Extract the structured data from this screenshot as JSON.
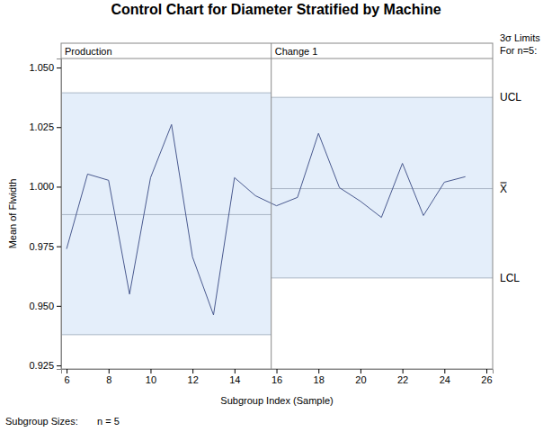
{
  "chart_data": {
    "type": "line",
    "title": "Control Chart for Diameter Stratified by Machine",
    "x_label": "Subgroup Index (Sample)",
    "y_label": "Mean of Flwidth",
    "x": [
      6,
      7,
      8,
      9,
      10,
      11,
      12,
      13,
      14,
      15,
      16,
      17,
      18,
      19,
      20,
      21,
      22,
      23,
      24,
      25
    ],
    "values": [
      0.9739,
      1.0053,
      1.0027,
      0.9549,
      1.0038,
      1.0261,
      0.9705,
      0.9462,
      1.0038,
      0.9962,
      0.992,
      0.9955,
      1.0224,
      0.9996,
      0.9939,
      0.9871,
      1.0098,
      0.9879,
      1.0019,
      1.0042
    ],
    "color": "#4a5a8f",
    "xlim": [
      5.74,
      26.3
    ],
    "xticks": [
      6,
      8,
      10,
      12,
      14,
      16,
      18,
      20,
      22,
      24,
      26
    ],
    "ylim": [
      0.9235,
      1.0538
    ],
    "yticks": [
      {
        "value": 0.925,
        "label": "0.925"
      },
      {
        "value": 0.95,
        "label": "0.950"
      },
      {
        "value": 0.975,
        "label": "0.975"
      },
      {
        "value": 1.0,
        "label": "1.000"
      },
      {
        "value": 1.025,
        "label": "1.025"
      },
      {
        "value": 1.05,
        "label": "1.050"
      }
    ],
    "phases": [
      {
        "label": "Production",
        "x": [
          5.74,
          15.75
        ],
        "ucl": 1.0394,
        "mean": 0.9883,
        "lcl": 0.9379
      },
      {
        "label": "Change 1",
        "x": [
          15.75,
          26.3
        ],
        "ucl": 1.0375,
        "mean": 0.9992,
        "lcl": 0.9617
      }
    ],
    "limit_labels": {
      "ucl": "UCL",
      "mean": "X̿",
      "lcl": "LCL"
    },
    "limits_note": [
      "3σ Limits",
      "For n=5:"
    ],
    "subgroup_sizes": {
      "label": "Subgroup Sizes:",
      "text": "n = 5"
    }
  }
}
